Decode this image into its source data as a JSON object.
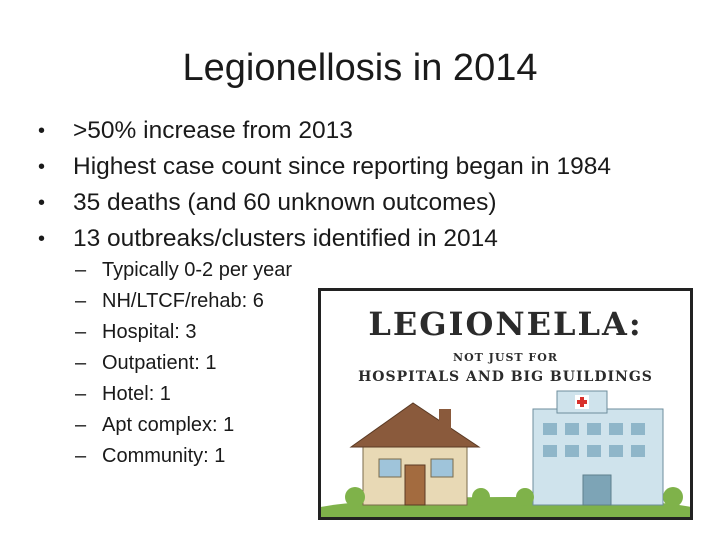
{
  "slide": {
    "title": "Legionellosis in 2014",
    "bullets": [
      ">50% increase from 2013",
      "Highest case count since reporting began in 1984",
      "35 deaths (and 60 unknown outcomes)",
      "13 outbreaks/clusters identified in 2014"
    ],
    "bullet_marker": "•",
    "sub_marker": "–",
    "sub_bullets": [
      "Typically 0-2 per year",
      "NH/LTCF/rehab: 6",
      "Hospital: 3",
      "Outpatient: 1",
      "Hotel: 1",
      "Apt complex: 1",
      "Community: 1"
    ]
  },
  "banner": {
    "headline": "LEGIONELLA:",
    "line2": "NOT JUST FOR",
    "line3": "HOSPITALS AND BIG BUILDINGS",
    "colors": {
      "house_wall": "#e8d9b5",
      "house_roof": "#8a5a3c",
      "hospital_wall": "#cfe3ec",
      "cross": "#d8312c",
      "grass": "#7fb24a"
    }
  }
}
